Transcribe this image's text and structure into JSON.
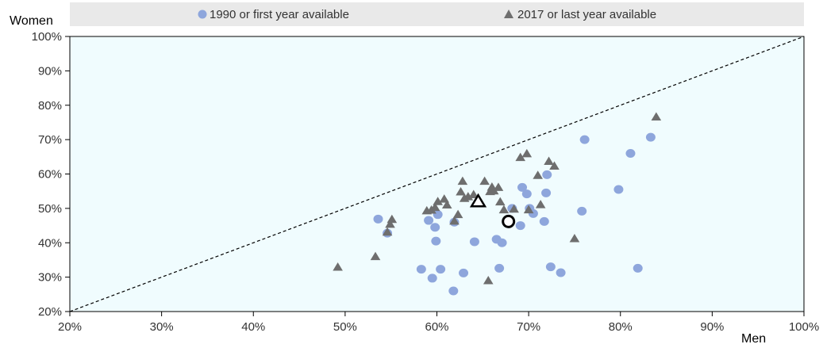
{
  "chart_data": {
    "type": "scatter",
    "title": "",
    "xlabel": "Men",
    "ylabel": "Women",
    "xlim": [
      20,
      100
    ],
    "ylim": [
      20,
      100
    ],
    "x_ticks": [
      20,
      30,
      40,
      50,
      60,
      70,
      80,
      90,
      100
    ],
    "y_ticks": [
      20,
      30,
      40,
      50,
      60,
      70,
      80,
      90,
      100
    ],
    "x_tick_labels": [
      "20%",
      "30%",
      "40%",
      "50%",
      "60%",
      "70%",
      "80%",
      "90%",
      "100%"
    ],
    "y_tick_labels": [
      "20%",
      "30%",
      "40%",
      "50%",
      "60%",
      "70%",
      "80%",
      "90%",
      "100%"
    ],
    "grid": false,
    "legend_position": "top",
    "reference_line": {
      "style": "dashed",
      "from": [
        20,
        20
      ],
      "to": [
        100,
        100
      ]
    },
    "series": [
      {
        "name": "1990 or first year available",
        "marker": "circle",
        "color": "#8EA6DC",
        "points": [
          [
            53.6,
            46.9
          ],
          [
            54.6,
            42.8
          ],
          [
            58.3,
            32.3
          ],
          [
            59.1,
            46.5
          ],
          [
            59.5,
            29.7
          ],
          [
            59.8,
            44.5
          ],
          [
            59.9,
            40.5
          ],
          [
            60.1,
            48.2
          ],
          [
            60.4,
            32.3
          ],
          [
            61.8,
            26.0
          ],
          [
            61.9,
            46.0
          ],
          [
            62.9,
            31.2
          ],
          [
            64.1,
            40.3
          ],
          [
            66.5,
            41.0
          ],
          [
            66.8,
            32.6
          ],
          [
            67.1,
            40.0
          ],
          [
            68.2,
            50.0
          ],
          [
            69.1,
            45.0
          ],
          [
            69.3,
            56.1
          ],
          [
            69.8,
            54.2
          ],
          [
            70.1,
            50.0
          ],
          [
            70.5,
            48.5
          ],
          [
            71.7,
            46.2
          ],
          [
            71.9,
            54.5
          ],
          [
            72.0,
            59.8
          ],
          [
            72.4,
            33.0
          ],
          [
            73.5,
            31.3
          ],
          [
            75.8,
            49.2
          ],
          [
            76.1,
            70.0
          ],
          [
            79.8,
            55.5
          ],
          [
            81.1,
            66.0
          ],
          [
            81.9,
            32.6
          ],
          [
            83.3,
            70.7
          ]
        ]
      },
      {
        "name": "2017 or last year available",
        "marker": "triangle",
        "color": "#6E6E6E",
        "points": [
          [
            49.2,
            32.9
          ],
          [
            53.3,
            36.0
          ],
          [
            54.6,
            43.1
          ],
          [
            54.9,
            45.4
          ],
          [
            55.1,
            46.8
          ],
          [
            58.9,
            49.3
          ],
          [
            59.4,
            49.5
          ],
          [
            59.8,
            50.3
          ],
          [
            60.1,
            52.0
          ],
          [
            60.8,
            52.7
          ],
          [
            61.1,
            51.0
          ],
          [
            61.9,
            46.3
          ],
          [
            62.3,
            48.2
          ],
          [
            62.6,
            54.8
          ],
          [
            62.8,
            57.9
          ],
          [
            63.0,
            52.9
          ],
          [
            63.4,
            53.4
          ],
          [
            64.0,
            54.0
          ],
          [
            65.2,
            57.9
          ],
          [
            65.6,
            29.0
          ],
          [
            65.8,
            54.9
          ],
          [
            66.0,
            56.2
          ],
          [
            66.2,
            55.1
          ],
          [
            66.7,
            56.1
          ],
          [
            66.9,
            51.9
          ],
          [
            67.3,
            49.6
          ],
          [
            68.4,
            49.8
          ],
          [
            69.1,
            64.8
          ],
          [
            69.8,
            65.9
          ],
          [
            70.0,
            49.6
          ],
          [
            71.0,
            59.6
          ],
          [
            71.3,
            51.1
          ],
          [
            72.2,
            63.7
          ],
          [
            72.8,
            62.3
          ],
          [
            75.0,
            41.2
          ],
          [
            83.9,
            76.6
          ]
        ]
      },
      {
        "name": "",
        "marker": "circle-outline",
        "color": "#000000",
        "points": [
          [
            67.8,
            46.2
          ]
        ]
      },
      {
        "name": "",
        "marker": "triangle-outline",
        "color": "#000000",
        "points": [
          [
            64.5,
            52.0
          ]
        ]
      }
    ]
  },
  "colors": {
    "plot_background": "#F0FCFE",
    "legend_background": "#E9E9E9",
    "axis": "#000000"
  }
}
